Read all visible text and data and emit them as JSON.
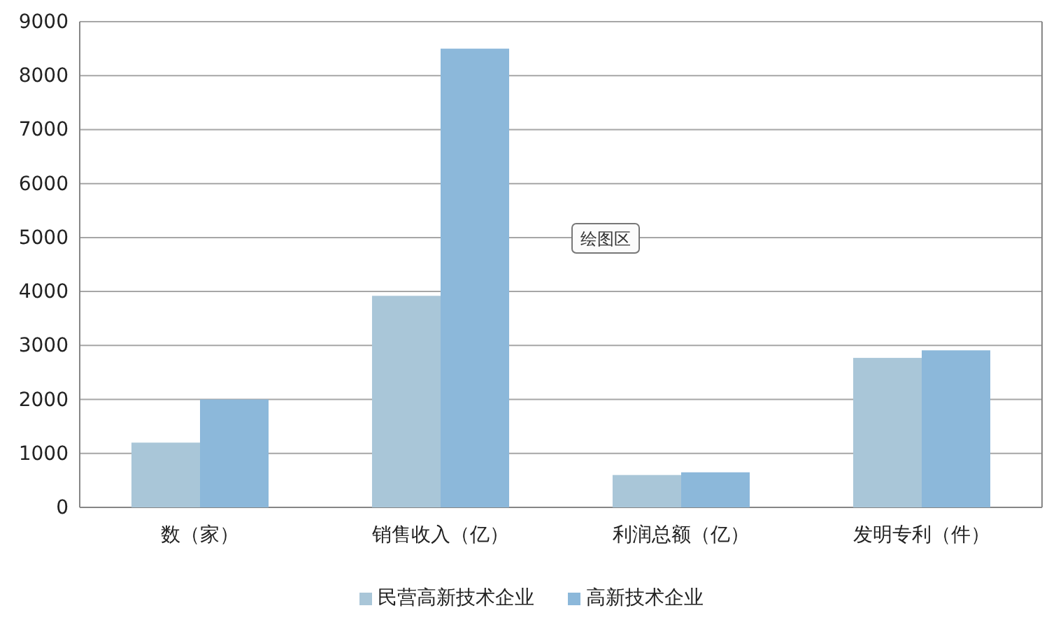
{
  "chart_data": {
    "type": "bar",
    "categories": [
      "数（家）",
      "销售收入（亿）",
      "利润总额（亿）",
      "发明专利（件）"
    ],
    "series": [
      {
        "name": "民营高新技术企业",
        "color": "#a9c6d8",
        "values": [
          1200,
          3920,
          600,
          2770
        ]
      },
      {
        "name": "高新技术企业",
        "color": "#8cb8da",
        "values": [
          2000,
          8500,
          650,
          2910
        ]
      }
    ],
    "ylim": [
      0,
      9000
    ],
    "yticks": [
      0,
      1000,
      2000,
      3000,
      4000,
      5000,
      6000,
      7000,
      8000,
      9000
    ],
    "grid": "y",
    "legend": "bottom",
    "annotations": [
      "绘图区"
    ]
  }
}
